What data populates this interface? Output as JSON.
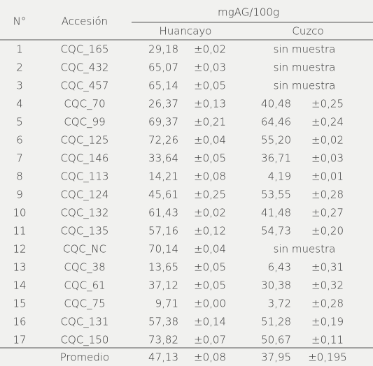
{
  "header": {
    "number": "N°",
    "accession": "Accesión",
    "unit": "mgAG/100g",
    "site1": "Huancayo",
    "site2": "Cuzco"
  },
  "table": {
    "rows": [
      [
        "1",
        "CQC_165",
        "29,18",
        "±0,02",
        "sin muestra"
      ],
      [
        "2",
        "CQC_432",
        "65,07",
        "±0,03",
        "sin muestra"
      ],
      [
        "3",
        "CQC_457",
        "65,14",
        "±0,05",
        "sin muestra"
      ],
      [
        "4",
        "CQC_70",
        "26,37",
        "±0,13",
        "40,48",
        "±0,25"
      ],
      [
        "5",
        "CQC_99",
        "69,37",
        "±0,21",
        "64,46",
        "±0,24"
      ],
      [
        "6",
        "CQC_125",
        "72,26",
        "±0,04",
        "55,20",
        "±0,02"
      ],
      [
        "7",
        "CQC_146",
        "33,64",
        "±0,05",
        "36,71",
        "±0,03"
      ],
      [
        "8",
        "CQC_113",
        "14,21",
        "±0,08",
        "4,19",
        "±0,01"
      ],
      [
        "9",
        "CQC_124",
        "45,61",
        "±0,25",
        "53,55",
        "±0,28"
      ],
      [
        "10",
        "CQC_132",
        "61,43",
        "±0,02",
        "41,48",
        "±0,27"
      ],
      [
        "11",
        "CQC_135",
        "57,16",
        "±0,12",
        "54,73",
        "±0,20"
      ],
      [
        "12",
        "CQC_NC",
        "70,14",
        "±0,04",
        "sin muestra"
      ],
      [
        "13",
        "CQC_38",
        "13,65",
        "±0,05",
        "6,43",
        "±0,31"
      ],
      [
        "14",
        "CQC_61",
        "37,12",
        "±0,05",
        "30,38",
        "±0,32"
      ],
      [
        "15",
        "CQC_75",
        "9,71",
        "±0,00",
        "3,72",
        "±0,28"
      ],
      [
        "16",
        "CQC_131",
        "57,38",
        "±0,14",
        "51,28",
        "±0,19"
      ],
      [
        "17",
        "CQC_150",
        "73,82",
        "±0,07",
        "50,67",
        "±0,11"
      ]
    ],
    "footer": {
      "label": "Promedio",
      "cells": [
        "47,13",
        "±0,08",
        "37,95",
        "±0,195"
      ]
    }
  }
}
